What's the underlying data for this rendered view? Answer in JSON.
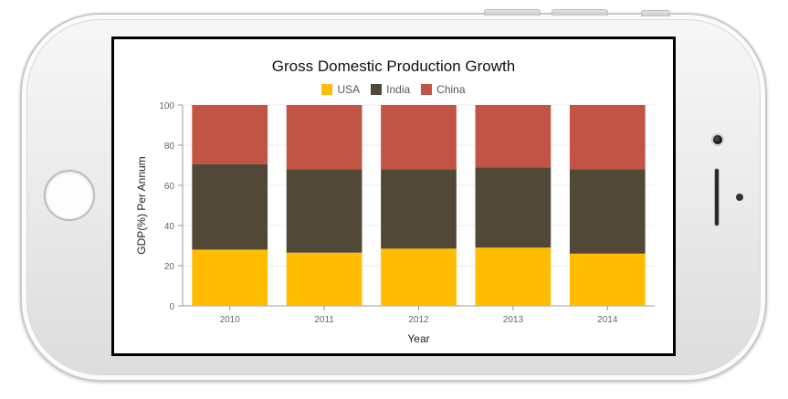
{
  "chart_data": {
    "type": "bar",
    "stacked": true,
    "title": "Gross Domestic Production Growth",
    "xlabel": "Year",
    "ylabel": "GDP(%) Per Annum",
    "categories": [
      "2010",
      "2011",
      "2012",
      "2013",
      "2014"
    ],
    "ylim": [
      0,
      100
    ],
    "yticks": [
      0,
      20,
      40,
      60,
      80,
      100
    ],
    "grid": true,
    "legend_position": "top",
    "series": [
      {
        "name": "USA",
        "color": "#FFBC00",
        "values": [
          28,
          26.5,
          28.5,
          29,
          26
        ]
      },
      {
        "name": "India",
        "color": "#524838",
        "values": [
          42.5,
          41.5,
          39.5,
          40,
          42
        ]
      },
      {
        "name": "China",
        "color": "#C15444",
        "values": [
          29.5,
          32,
          32,
          31,
          32
        ]
      }
    ]
  }
}
